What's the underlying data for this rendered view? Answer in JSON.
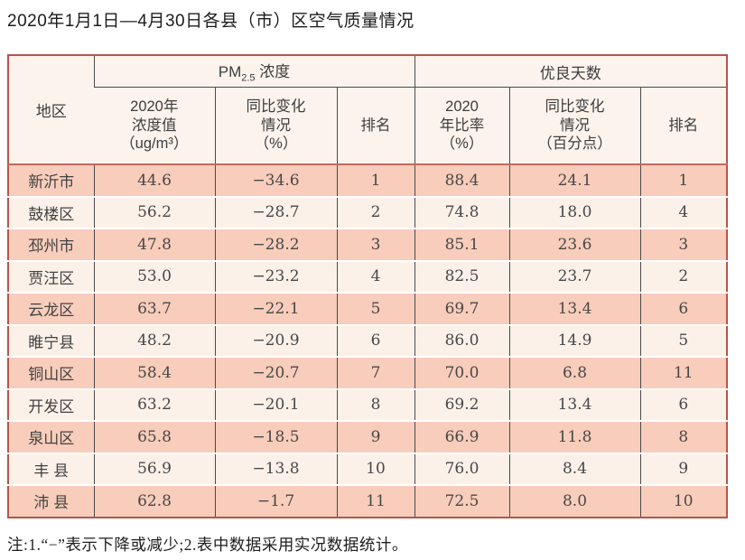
{
  "title": "2020年1月1日—4月30日各县（市）区空气质量情况",
  "footnote": "注:1.“−”表示下降或减少;2.表中数据采用实况数据统计。",
  "table": {
    "region_header": "地区",
    "group_headers": {
      "pm": {
        "prefix": "PM",
        "sub": "2.5",
        "suffix": " 浓度"
      },
      "good_days": "优良天数"
    },
    "sub_headers": {
      "pm_value": "2020年\n浓度值\n（ug/m³）",
      "pm_change": "同比变化\n情况\n（%）",
      "pm_rank": "排名",
      "good_rate": "2020\n年比率\n（%）",
      "good_change": "同比变化\n情况\n（百分点）",
      "good_rank": "排名"
    },
    "rows": [
      {
        "region": "新沂市",
        "pm_value": "44.6",
        "pm_change": "−34.6",
        "pm_rank": "1",
        "good_rate": "88.4",
        "good_change": "24.1",
        "good_rank": "1"
      },
      {
        "region": "鼓楼区",
        "pm_value": "56.2",
        "pm_change": "−28.7",
        "pm_rank": "2",
        "good_rate": "74.8",
        "good_change": "18.0",
        "good_rank": "4"
      },
      {
        "region": "邳州市",
        "pm_value": "47.8",
        "pm_change": "−28.2",
        "pm_rank": "3",
        "good_rate": "85.1",
        "good_change": "23.6",
        "good_rank": "3"
      },
      {
        "region": "贾汪区",
        "pm_value": "53.0",
        "pm_change": "−23.2",
        "pm_rank": "4",
        "good_rate": "82.5",
        "good_change": "23.7",
        "good_rank": "2"
      },
      {
        "region": "云龙区",
        "pm_value": "63.7",
        "pm_change": "−22.1",
        "pm_rank": "5",
        "good_rate": "69.7",
        "good_change": "13.4",
        "good_rank": "6"
      },
      {
        "region": "睢宁县",
        "pm_value": "48.2",
        "pm_change": "−20.9",
        "pm_rank": "6",
        "good_rate": "86.0",
        "good_change": "14.9",
        "good_rank": "5"
      },
      {
        "region": "铜山区",
        "pm_value": "58.4",
        "pm_change": "−20.7",
        "pm_rank": "7",
        "good_rate": "70.0",
        "good_change": "6.8",
        "good_rank": "11"
      },
      {
        "region": "开发区",
        "pm_value": "63.2",
        "pm_change": "−20.1",
        "pm_rank": "8",
        "good_rate": "69.2",
        "good_change": "13.4",
        "good_rank": "6"
      },
      {
        "region": "泉山区",
        "pm_value": "65.8",
        "pm_change": "−18.5",
        "pm_rank": "9",
        "good_rate": "66.9",
        "good_change": "11.8",
        "good_rank": "8"
      },
      {
        "region": "丰 县",
        "pm_value": "56.9",
        "pm_change": "−13.8",
        "pm_rank": "10",
        "good_rate": "76.0",
        "good_change": "8.4",
        "good_rank": "9"
      },
      {
        "region": "沛 县",
        "pm_value": "62.8",
        "pm_change": "−1.7",
        "pm_rank": "11",
        "good_rate": "72.5",
        "good_change": "8.0",
        "good_rank": "10"
      }
    ]
  },
  "chart_data": {
    "type": "table",
    "title": "2020年1月1日—4月30日各县（市）区空气质量情况",
    "columns": [
      "地区",
      "PM2.5浓度 2020年浓度值（ug/m³）",
      "PM2.5浓度 同比变化情况（%）",
      "PM2.5浓度 排名",
      "优良天数 2020年比率（%）",
      "优良天数 同比变化情况（百分点）",
      "优良天数 排名"
    ],
    "rows": [
      [
        "新沂市",
        44.6,
        -34.6,
        1,
        88.4,
        24.1,
        1
      ],
      [
        "鼓楼区",
        56.2,
        -28.7,
        2,
        74.8,
        18.0,
        4
      ],
      [
        "邳州市",
        47.8,
        -28.2,
        3,
        85.1,
        23.6,
        3
      ],
      [
        "贾汪区",
        53.0,
        -23.2,
        4,
        82.5,
        23.7,
        2
      ],
      [
        "云龙区",
        63.7,
        -22.1,
        5,
        69.7,
        13.4,
        6
      ],
      [
        "睢宁县",
        48.2,
        -20.9,
        6,
        86.0,
        14.9,
        5
      ],
      [
        "铜山区",
        58.4,
        -20.7,
        7,
        70.0,
        6.8,
        11
      ],
      [
        "开发区",
        63.2,
        -20.1,
        8,
        69.2,
        13.4,
        6
      ],
      [
        "泉山区",
        65.8,
        -18.5,
        9,
        66.9,
        11.8,
        8
      ],
      [
        "丰县",
        56.9,
        -13.8,
        10,
        76.0,
        8.4,
        9
      ],
      [
        "沛县",
        62.8,
        -1.7,
        11,
        72.5,
        8.0,
        10
      ]
    ]
  },
  "colors": {
    "outer_border": "#b2564c",
    "grid_line": "#4a4a4a",
    "header_bg": "#fcf3ec",
    "row_dark": "#f8cdbb",
    "row_light": "#fcf1e9",
    "header_underline": "#c4685c"
  }
}
